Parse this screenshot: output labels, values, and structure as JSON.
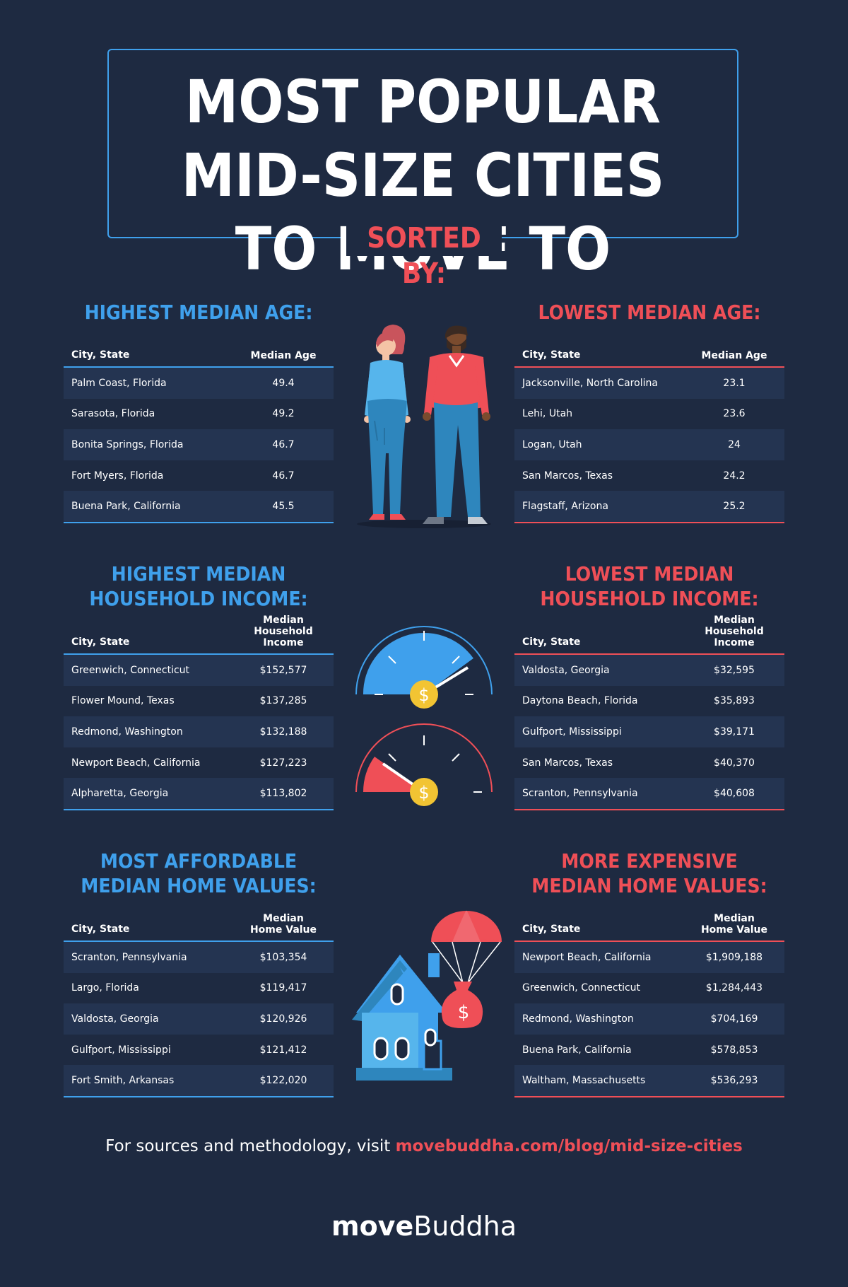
{
  "title": "MOST POPULAR MID-SIZE CITIES TO MOVE TO",
  "sorted_by": "SORTED BY:",
  "tables": [
    {
      "title": "HIGHEST MEDIAN AGE:",
      "col_city": "City, State",
      "col_value": "Median Age",
      "color": "#3fa0ec",
      "rows": [
        {
          "city": "Palm Coast, Florida",
          "value": "49.4"
        },
        {
          "city": "Sarasota, Florida",
          "value": "49.2"
        },
        {
          "city": "Bonita Springs, Florida",
          "value": "46.7"
        },
        {
          "city": "Fort Myers, Florida",
          "value": "46.7"
        },
        {
          "city": "Buena Park, California",
          "value": "45.5"
        }
      ]
    },
    {
      "title": "LOWEST MEDIAN AGE:",
      "col_city": "City, State",
      "col_value": "Median Age",
      "color": "#ef4f57",
      "rows": [
        {
          "city": "Jacksonville, North Carolina",
          "value": "23.1"
        },
        {
          "city": "Lehi, Utah",
          "value": "23.6"
        },
        {
          "city": "Logan, Utah",
          "value": "24"
        },
        {
          "city": "San Marcos, Texas",
          "value": "24.2"
        },
        {
          "city": "Flagstaff, Arizona",
          "value": "25.2"
        }
      ]
    },
    {
      "title_line1": "HIGHEST MEDIAN",
      "title_line2": "HOUSEHOLD INCOME:",
      "col_city": "City, State",
      "col_value_line1": "Median",
      "col_value_line2": "Household Income",
      "color": "#3fa0ec",
      "rows": [
        {
          "city": "Greenwich, Connecticut",
          "value": "$152,577"
        },
        {
          "city": "Flower Mound, Texas",
          "value": "$137,285"
        },
        {
          "city": "Redmond, Washington",
          "value": "$132,188"
        },
        {
          "city": "Newport Beach, California",
          "value": "$127,223"
        },
        {
          "city": "Alpharetta, Georgia",
          "value": "$113,802"
        }
      ]
    },
    {
      "title_line1": "LOWEST MEDIAN",
      "title_line2": "HOUSEHOLD INCOME:",
      "col_city": "City, State",
      "col_value_line1": "Median",
      "col_value_line2": "Household Income",
      "color": "#ef4f57",
      "rows": [
        {
          "city": "Valdosta, Georgia",
          "value": "$32,595"
        },
        {
          "city": "Daytona Beach, Florida",
          "value": "$35,893"
        },
        {
          "city": "Gulfport, Mississippi",
          "value": "$39,171"
        },
        {
          "city": "San Marcos, Texas",
          "value": "$40,370"
        },
        {
          "city": "Scranton, Pennsylvania",
          "value": "$40,608"
        }
      ]
    },
    {
      "title_line1": "MOST AFFORDABLE",
      "title_line2": "MEDIAN HOME VALUES:",
      "col_city": "City, State",
      "col_value_line1": "Median",
      "col_value_line2": "Home Value",
      "color": "#3fa0ec",
      "rows": [
        {
          "city": "Scranton, Pennsylvania",
          "value": "$103,354"
        },
        {
          "city": "Largo, Florida",
          "value": "$119,417"
        },
        {
          "city": "Valdosta, Georgia",
          "value": "$120,926"
        },
        {
          "city": "Gulfport, Mississippi",
          "value": "$121,412"
        },
        {
          "city": "Fort Smith, Arkansas",
          "value": "$122,020"
        }
      ]
    },
    {
      "title_line1": "MORE EXPENSIVE",
      "title_line2": "MEDIAN HOME VALUES:",
      "col_city": "City, State",
      "col_value_line1": "Median",
      "col_value_line2": "Home Value",
      "color": "#ef4f57",
      "rows": [
        {
          "city": "Newport Beach, California",
          "value": "$1,909,188"
        },
        {
          "city": "Greenwich, Connecticut",
          "value": "$1,284,443"
        },
        {
          "city": "Redmond, Washington",
          "value": "$704,169"
        },
        {
          "city": "Buena Park, California",
          "value": "$578,853"
        },
        {
          "city": "Waltham, Massachusetts",
          "value": "$536,293"
        }
      ]
    }
  ],
  "footer": {
    "text": "For sources and methodology, visit ",
    "link": "movebuddha.com/blog/mid-size-cities"
  },
  "logo": {
    "part1": "move",
    "part2": "Buddha"
  },
  "icons": {
    "couple": "people-icon",
    "gauge_high": "gauge-icon",
    "gauge_low": "gauge-icon",
    "house": "house-icon",
    "money_bag": "money-bag-icon",
    "parachute": "parachute-icon"
  }
}
